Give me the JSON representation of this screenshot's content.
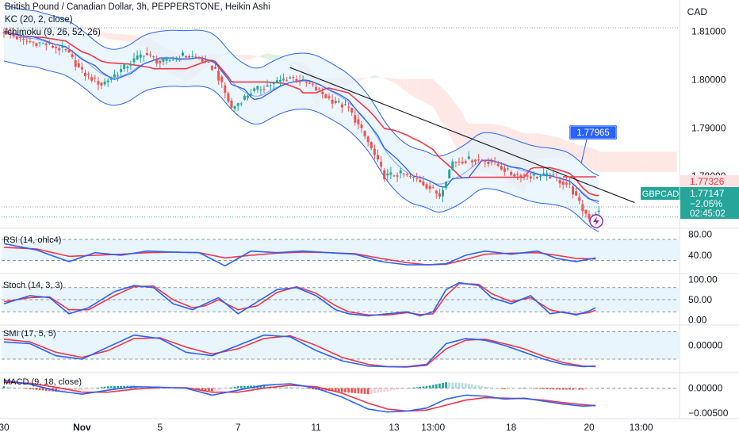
{
  "header": {
    "title": "British Pound / Canadian Dollar, 3h, PEPPERSTONE, Heikin Ashi",
    "kc_label": "KC (20, 2, close)",
    "ichimoku_label": "Ichimoku (9, 26, 52, 26)",
    "currency": "CAD"
  },
  "colors": {
    "up": "#26a69a",
    "down": "#ef5350",
    "blue": "#2962ff",
    "red": "#f23645",
    "kc_fill": "#e3f2fd",
    "cloud_red": "#fde0dc",
    "cloud_green": "#d5eed8",
    "trendline": "#131722",
    "axis_text": "#131722"
  },
  "chart_data": [
    {
      "type": "candlestick",
      "name": "price",
      "ylim": [
        1.7695,
        1.8165
      ],
      "yticks": [
        "1.81000",
        "1.80000",
        "1.79000",
        "1.78000"
      ],
      "ytick_values": [
        1.81,
        1.8,
        1.79,
        1.78
      ],
      "x_labels": [
        "30",
        "Nov",
        "5",
        "7",
        "11",
        "13",
        "13:00",
        "18",
        "20",
        "13:00"
      ],
      "x_label_bars": [
        0,
        24,
        48,
        72,
        96,
        120,
        132,
        156,
        180,
        196
      ],
      "price_tag": {
        "symbol": "GBPCAD",
        "last": "1.77147",
        "change": "−2.05%",
        "countdown": "02:45:02"
      },
      "upper_tag": "1.77326",
      "callout": "1.77965",
      "trendline": {
        "x": [
          88,
          194
        ],
        "y": [
          1.8025,
          1.7745
        ]
      },
      "anchors": {
        "x": [
          0,
          6,
          12,
          19,
          24,
          30,
          36,
          43,
          48,
          55,
          60,
          65,
          70,
          76,
          82,
          88,
          94,
          100,
          106,
          112,
          117,
          122,
          128,
          134,
          138,
          144,
          150,
          156,
          162,
          168,
          174,
          178,
          180,
          182
        ],
        "close": [
          1.81,
          1.808,
          1.8075,
          1.806,
          1.8015,
          1.799,
          1.802,
          1.8055,
          1.8035,
          1.805,
          1.8045,
          1.802,
          1.794,
          1.7975,
          1.799,
          1.8005,
          1.799,
          1.796,
          1.794,
          1.787,
          1.78,
          1.7805,
          1.779,
          1.776,
          1.783,
          1.7835,
          1.783,
          1.7805,
          1.78,
          1.78,
          1.778,
          1.773,
          1.7715,
          1.7725
        ]
      }
    },
    {
      "type": "line",
      "name": "RSI",
      "label": "RSI (14, ohlc4)",
      "ylim": [
        10,
        85
      ],
      "yticks": [
        "80.00",
        "40.00"
      ],
      "ytick_values": [
        80,
        40
      ],
      "levels": [
        70,
        30
      ],
      "blue": {
        "x": [
          0,
          10,
          20,
          28,
          36,
          44,
          52,
          60,
          68,
          76,
          84,
          92,
          100,
          108,
          116,
          124,
          130,
          136,
          142,
          148,
          156,
          164,
          170,
          176,
          182
        ],
        "y": [
          62,
          50,
          28,
          45,
          40,
          48,
          46,
          45,
          20,
          48,
          45,
          48,
          45,
          42,
          28,
          22,
          22,
          24,
          40,
          48,
          42,
          48,
          34,
          28,
          35
        ]
      },
      "red": {
        "x": [
          0,
          10,
          20,
          28,
          36,
          44,
          52,
          60,
          68,
          76,
          84,
          92,
          100,
          108,
          116,
          124,
          130,
          136,
          142,
          148,
          156,
          164,
          170,
          176,
          182
        ],
        "y": [
          55,
          52,
          38,
          40,
          42,
          45,
          46,
          45,
          35,
          40,
          44,
          46,
          45,
          43,
          34,
          26,
          22,
          23,
          32,
          42,
          44,
          45,
          40,
          34,
          33
        ]
      }
    },
    {
      "type": "line",
      "name": "Stoch",
      "label": "Stoch (14, 3, 3)",
      "ylim": [
        -5,
        105
      ],
      "yticks": [
        "100.00",
        "50.00",
        "0.00"
      ],
      "ytick_values": [
        100,
        50,
        0
      ],
      "levels": [
        80,
        50,
        20
      ],
      "blue": {
        "x": [
          0,
          8,
          14,
          20,
          26,
          34,
          40,
          46,
          52,
          58,
          62,
          66,
          72,
          78,
          84,
          90,
          96,
          102,
          106,
          112,
          118,
          124,
          128,
          132,
          136,
          140,
          146,
          150,
          156,
          162,
          168,
          172,
          176,
          180,
          182
        ],
        "y": [
          40,
          60,
          55,
          15,
          30,
          70,
          85,
          80,
          40,
          25,
          40,
          55,
          15,
          45,
          75,
          80,
          60,
          25,
          15,
          10,
          15,
          20,
          10,
          20,
          75,
          92,
          85,
          55,
          40,
          60,
          15,
          20,
          12,
          22,
          30
        ]
      },
      "red": {
        "x": [
          0,
          8,
          14,
          20,
          26,
          34,
          40,
          46,
          52,
          58,
          62,
          66,
          72,
          78,
          84,
          90,
          96,
          102,
          106,
          112,
          118,
          124,
          128,
          132,
          136,
          140,
          146,
          150,
          156,
          162,
          168,
          172,
          176,
          180,
          182
        ],
        "y": [
          45,
          55,
          57,
          25,
          25,
          60,
          82,
          84,
          50,
          30,
          35,
          50,
          25,
          35,
          68,
          82,
          66,
          35,
          20,
          12,
          12,
          18,
          13,
          15,
          60,
          90,
          88,
          65,
          45,
          55,
          25,
          18,
          14,
          18,
          24
        ]
      }
    },
    {
      "type": "line",
      "name": "SMI",
      "label": "SMI (17, 5, 5)",
      "ylim": [
        -70,
        50
      ],
      "yticks": [
        "0.00000"
      ],
      "ytick_values": [
        0
      ],
      "levels": [
        40,
        -40
      ],
      "blue": {
        "x": [
          0,
          8,
          16,
          24,
          32,
          40,
          48,
          56,
          64,
          72,
          80,
          88,
          96,
          104,
          112,
          118,
          124,
          130,
          136,
          142,
          148,
          154,
          160,
          166,
          172,
          178,
          182
        ],
        "y": [
          10,
          5,
          -30,
          -40,
          -5,
          30,
          20,
          -20,
          -30,
          0,
          30,
          25,
          -15,
          -45,
          -60,
          -62,
          -62,
          -55,
          5,
          20,
          15,
          0,
          -20,
          -40,
          -55,
          -62,
          -60
        ]
      },
      "red": {
        "x": [
          0,
          8,
          16,
          24,
          32,
          40,
          48,
          56,
          64,
          72,
          80,
          88,
          96,
          104,
          112,
          118,
          124,
          130,
          136,
          142,
          148,
          154,
          160,
          166,
          172,
          178,
          182
        ],
        "y": [
          18,
          10,
          -20,
          -35,
          -15,
          20,
          22,
          -5,
          -25,
          -10,
          20,
          28,
          0,
          -35,
          -55,
          -62,
          -63,
          -58,
          -10,
          15,
          18,
          5,
          -10,
          -32,
          -50,
          -60,
          -62
        ]
      }
    },
    {
      "type": "bar",
      "name": "MACD",
      "label": "MACD (9, 18, close)",
      "ylim": [
        -0.0058,
        0.0025
      ],
      "yticks": [
        "0.00000",
        "−0.00500"
      ],
      "ytick_values": [
        0,
        -0.005
      ],
      "macd": {
        "x": [
          0,
          8,
          16,
          24,
          32,
          40,
          48,
          56,
          64,
          72,
          80,
          88,
          96,
          104,
          112,
          118,
          124,
          130,
          136,
          142,
          148,
          154,
          160,
          166,
          172,
          178,
          182
        ],
        "y": [
          0.0016,
          0.0008,
          -0.0005,
          -0.0012,
          -0.0004,
          0.0003,
          0.0002,
          0.0,
          -0.0014,
          -0.0004,
          0.0006,
          0.0009,
          0.0,
          -0.0018,
          -0.0042,
          -0.0048,
          -0.0046,
          -0.004,
          -0.0022,
          -0.0014,
          -0.0016,
          -0.0022,
          -0.002,
          -0.0026,
          -0.0032,
          -0.0036,
          -0.0035
        ]
      },
      "signal": {
        "x": [
          0,
          8,
          16,
          24,
          32,
          40,
          48,
          56,
          64,
          72,
          80,
          88,
          96,
          104,
          112,
          118,
          124,
          130,
          136,
          142,
          148,
          154,
          160,
          166,
          172,
          178,
          182
        ],
        "y": [
          0.0012,
          0.001,
          0.0002,
          -0.0008,
          -0.0008,
          -0.0002,
          0.0001,
          0.0001,
          -0.0008,
          -0.0008,
          0.0,
          0.0006,
          0.0003,
          -0.001,
          -0.003,
          -0.0042,
          -0.0046,
          -0.0044,
          -0.0034,
          -0.0024,
          -0.0019,
          -0.002,
          -0.0021,
          -0.0024,
          -0.0029,
          -0.0033,
          -0.0035
        ]
      }
    }
  ]
}
